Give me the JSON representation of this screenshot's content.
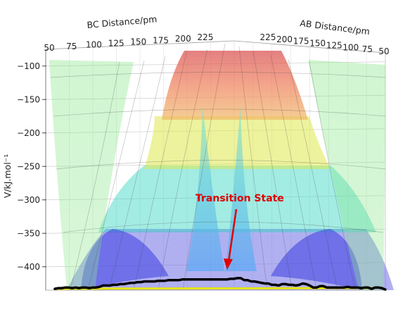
{
  "chart_data": {
    "type": "surface",
    "zlabel": "V/kJ.mol⁻¹",
    "left_axis_label": "BC Distance/pm",
    "right_axis_label": "AB Distance/pm",
    "left_ticks": [
      "50",
      "75",
      "100",
      "125",
      "150",
      "175",
      "200",
      "225"
    ],
    "right_ticks": [
      "225",
      "200",
      "175",
      "150",
      "125",
      "100",
      "75",
      "50"
    ],
    "z_ticks": [
      -100,
      -150,
      -200,
      -250,
      -300,
      -350,
      -400
    ],
    "z_range": [
      -435,
      -75
    ],
    "grid": true,
    "colormap": "rainbow",
    "annotation": {
      "text": "Transition State",
      "color": "#e00000"
    },
    "trajectory": {
      "color": "#000000",
      "v": [
        -433,
        -432,
        -432,
        -431,
        -431,
        -432,
        -431,
        -432,
        -431,
        -431,
        -432,
        -431,
        -431,
        -430,
        -428,
        -428,
        -428,
        -427,
        -427,
        -426,
        -426,
        -425,
        -424,
        -424,
        -423,
        -423,
        -422,
        -422,
        -422,
        -422,
        -421,
        -421,
        -421,
        -420,
        -420,
        -420,
        -420,
        -419,
        -419,
        -419,
        -419,
        -419,
        -419,
        -419,
        -419,
        -419,
        -419,
        -419,
        -419,
        -419,
        -419,
        -418,
        -418,
        -417,
        -417,
        -420,
        -420,
        -422,
        -422,
        -423,
        -424,
        -425,
        -425,
        -427,
        -427,
        -428,
        -426,
        -426,
        -427,
        -427,
        -428,
        -427,
        -425,
        -426,
        -428,
        -431,
        -431,
        -429,
        -429,
        -431,
        -431,
        -431,
        -431,
        -431,
        -431,
        -430,
        -431,
        -431,
        -431,
        -432,
        -431,
        -431,
        -433,
        -431,
        -431,
        -432,
        -434
      ]
    }
  }
}
